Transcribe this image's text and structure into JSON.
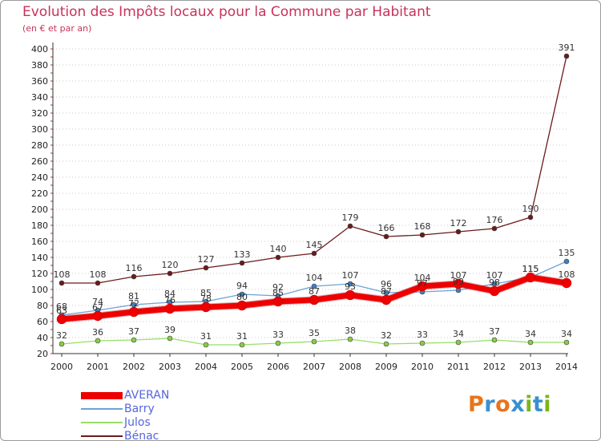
{
  "title": "Evolution des Impôts locaux pour la Commune par Habitant",
  "subtitle": "(en € et par an)",
  "logo": {
    "letters": [
      "P",
      "r",
      "o",
      "x",
      "i",
      "t",
      "i"
    ],
    "colors": [
      "#e8741c",
      "#3a8fd0",
      "#e8741c",
      "#3a8fd0",
      "#7ab51d",
      "#3a8fd0",
      "#7ab51d"
    ]
  },
  "chart_data": {
    "type": "line",
    "title": "Evolution des Impôts locaux pour la Commune par Habitant",
    "ylabel": "(en € et par an)",
    "x": [
      "2000",
      "2001",
      "2002",
      "2003",
      "2004",
      "2005",
      "2006",
      "2007",
      "2008",
      "2009",
      "2010",
      "2011",
      "2012",
      "2013",
      "2014"
    ],
    "ylim": [
      20,
      400
    ],
    "yticks": [
      "20",
      "40",
      "60",
      "80",
      "100",
      "120",
      "140",
      "160",
      "180",
      "200",
      "220",
      "240",
      "260",
      "280",
      "300",
      "320",
      "340",
      "360",
      "380",
      "400"
    ],
    "series": [
      {
        "name": "AVERAN",
        "color": "#ee0000",
        "marker": "#ee0000",
        "width": 7,
        "values": [
          63,
          67,
          72,
          76,
          78,
          80,
          85,
          87,
          93,
          87,
          104,
          107,
          98,
          115,
          108
        ]
      },
      {
        "name": "Barry",
        "color": "#6aa4d8",
        "marker": "#3d7fc2",
        "width": 1.3,
        "values": [
          68,
          74,
          81,
          84,
          85,
          94,
          92,
          104,
          107,
          96,
          97,
          99,
          107,
          115,
          135
        ]
      },
      {
        "name": "Julos",
        "color": "#99dd66",
        "marker": "#88cc44",
        "width": 1.3,
        "values": [
          32,
          36,
          37,
          39,
          31,
          31,
          33,
          35,
          38,
          32,
          33,
          34,
          37,
          34,
          34
        ]
      },
      {
        "name": "Bénac",
        "color": "#6b1a1a",
        "marker": "#6b1a1a",
        "width": 1.3,
        "values": [
          108,
          108,
          116,
          120,
          127,
          133,
          140,
          145,
          179,
          166,
          168,
          172,
          176,
          190,
          391
        ]
      }
    ]
  }
}
